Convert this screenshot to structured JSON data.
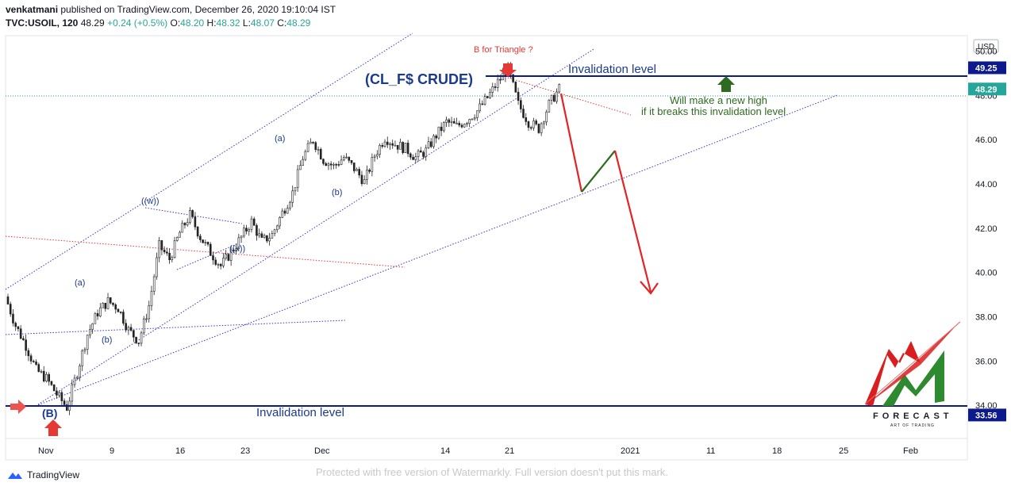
{
  "header": {
    "author": "venkatmani",
    "published_text": "published on TradingView.com, December 26, 2020 19:10:04 IST",
    "symbol": "TVC:USOIL, 120",
    "last": "48.29",
    "change": "+0.24 (+0.5%)",
    "o_label": "O:",
    "o_value": "48.20",
    "h_label": "H:",
    "h_value": "48.32",
    "l_label": "L:",
    "l_value": "48.07",
    "c_label": "C:",
    "c_value": "48.29"
  },
  "chart_data": {
    "type": "candlestick",
    "currency": "USD",
    "y_ticks": [
      "50.00",
      "48.00",
      "46.00",
      "44.00",
      "42.00",
      "40.00",
      "38.00",
      "36.00",
      "34.00"
    ],
    "ylim": [
      32.5,
      50.7
    ],
    "x_ticks": [
      "Nov",
      "9",
      "16",
      "23",
      "Dec",
      "14",
      "21",
      "2021",
      "11",
      "18",
      "25",
      "Feb"
    ],
    "price_labels": [
      {
        "value": 49.25,
        "text": "49.25",
        "color": "#0d1a8c"
      },
      {
        "value": 48.29,
        "text": "48.29",
        "color": "#26a69a"
      },
      {
        "value": 33.56,
        "text": "33.56",
        "color": "#0d1a8c"
      }
    ],
    "horizontal_levels": [
      {
        "value": 49.25,
        "label": "Invalidation level"
      },
      {
        "value": 33.56,
        "label": "Invalidation level"
      }
    ],
    "title": "(CL_F$ CRUDE)",
    "annotations": {
      "b_triangle": "B for Triangle ?",
      "new_high_line1": "Will make a new high",
      "new_high_line2": "if it breaks this invalidation level",
      "wave_B": "(B)",
      "wave_a1": "(a)",
      "wave_b1": "(b)",
      "wave_w": "((w))",
      "wave_x": "((x))",
      "wave_a2": "(a)",
      "wave_b2": "(b)"
    },
    "approx_closes": [
      38.9,
      37.6,
      36.7,
      35.6,
      35.2,
      34.5,
      33.9,
      35.5,
      37.2,
      38.2,
      38.7,
      38.4,
      37.4,
      36.9,
      38.5,
      41.2,
      40.6,
      41.8,
      42.6,
      41.6,
      40.9,
      40.3,
      40.9,
      41.6,
      42.3,
      41.4,
      41.7,
      42.7,
      43.6,
      45.2,
      46.0,
      45.1,
      44.8,
      45.2,
      44.7,
      44.1,
      45.3,
      46.1,
      45.8,
      45.6,
      45.2,
      45.5,
      46.2,
      46.8,
      46.6,
      46.9,
      47.3,
      47.9,
      48.6,
      49.2,
      47.6,
      46.8,
      46.5,
      47.6,
      48.29
    ]
  },
  "footer": {
    "tradingview": "TradingView",
    "watermark": "Protected with free version of Watermarkly. Full version doesn't put this mark."
  },
  "brand": {
    "name": "FORECAST",
    "tagline": "ART OF TRADING"
  }
}
